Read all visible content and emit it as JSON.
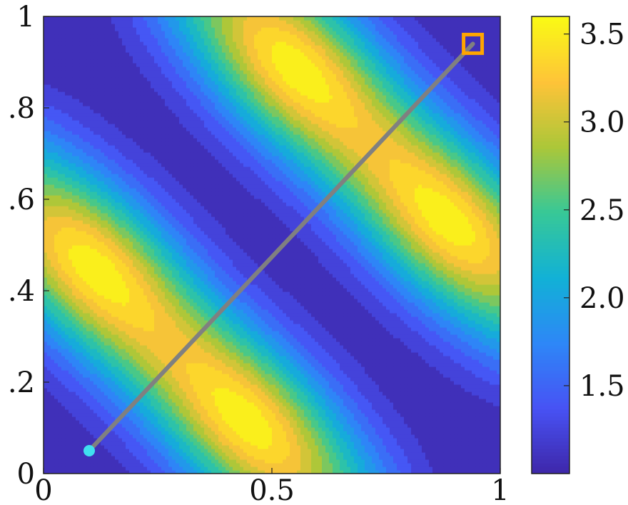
{
  "chart_data": {
    "type": "heatmap",
    "subtype": "filled-contour",
    "title": "",
    "xlabel": "",
    "ylabel": "",
    "xlim": [
      0,
      1
    ],
    "ylim": [
      0,
      1
    ],
    "x_ticks": [
      {
        "value": 0,
        "label": "0"
      },
      {
        "value": 0.5,
        "label": "0.5"
      },
      {
        "value": 1,
        "label": "1"
      }
    ],
    "y_ticks": [
      {
        "value": 0,
        "label": "0"
      },
      {
        "value": 0.2,
        "label": ".2"
      },
      {
        "value": 0.4,
        "label": ".4"
      },
      {
        "value": 0.6,
        "label": ".6"
      },
      {
        "value": 0.8,
        "label": ".8"
      },
      {
        "value": 1,
        "label": "1"
      }
    ],
    "colorbar": {
      "colormap": "parula",
      "range": [
        1.0,
        3.6
      ],
      "ticks": [
        {
          "value": 1.5,
          "label": "1.5"
        },
        {
          "value": 2.0,
          "label": "2.0"
        },
        {
          "value": 2.5,
          "label": "2.5"
        },
        {
          "value": 3.0,
          "label": "3.0"
        },
        {
          "value": 3.5,
          "label": "3.5"
        }
      ]
    },
    "field": {
      "description_of_structure": "two diagonal ridges along x+y ≈ 0.56 and x+y ≈ 1.44, each with two peaks and a saddle where the line crosses",
      "ridges": [
        {
          "center_sum": 0.56,
          "peaks": [
            [
              0.13,
              0.47
            ],
            [
              0.43,
              0.13
            ]
          ],
          "saddle": [
            0.28,
            0.28
          ]
        },
        {
          "center_sum": 1.44,
          "peaks": [
            [
              0.57,
              0.87
            ],
            [
              0.87,
              0.57
            ]
          ],
          "saddle": [
            0.72,
            0.72
          ]
        }
      ],
      "min_value": 1.0,
      "max_value": 3.6
    },
    "series": [
      {
        "type": "line",
        "color": "#808080",
        "x": [
          0.1,
          0.94
        ],
        "y": [
          0.05,
          0.94
        ]
      },
      {
        "type": "scatter",
        "marker": "circle",
        "color": "#40e0f0",
        "x": [
          0.1
        ],
        "y": [
          0.05
        ]
      },
      {
        "type": "scatter",
        "marker": "square",
        "color": "#ffa500",
        "x": [
          0.94
        ],
        "y": [
          0.94
        ]
      }
    ],
    "grid": false
  }
}
